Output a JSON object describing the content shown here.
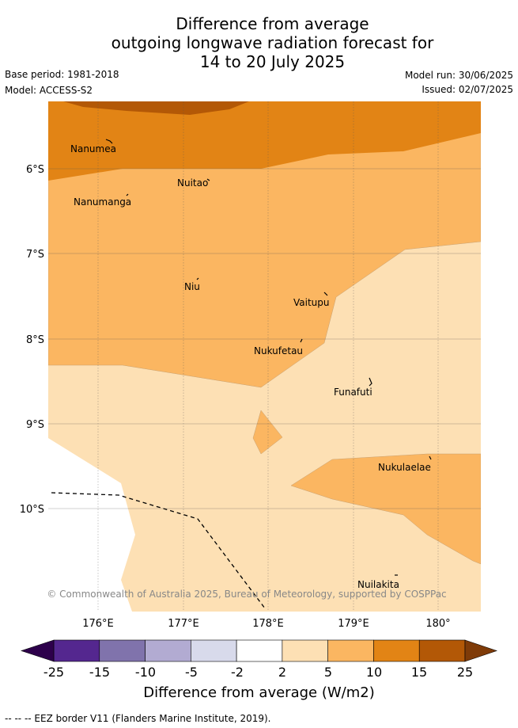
{
  "title": {
    "line1": "Difference from average",
    "line2": "outgoing longwave radiation forecast for",
    "line3": "14 to 20 July 2025"
  },
  "meta": {
    "base_period": "Base period: 1981-2018",
    "model": "Model: ACCESS-S2",
    "model_run": "Model run: 30/06/2025",
    "issued": "Issued: 02/07/2025"
  },
  "map": {
    "lat_labels": [
      "6°S",
      "7°S",
      "8°S",
      "9°S",
      "10°S"
    ],
    "lon_labels": [
      "176°E",
      "177°E",
      "178°E",
      "179°E",
      "180°"
    ],
    "places": [
      "Nanumea",
      "Nuitao",
      "Nanumanga",
      "Niu",
      "Vaitupu",
      "Nukufetau",
      "Funafuti",
      "Nukulaelae",
      "Nuilakita"
    ],
    "copyright": "© Commonwealth of Australia 2025, Bureau of Meteorology, supported by COSPPac",
    "colors": {
      "c2_5": "#fde0b4",
      "c5_10": "#fbb661",
      "c10_15": "#e28415",
      "c15_25": "#b35806"
    }
  },
  "colorbar": {
    "ticks": [
      "-25",
      "-15",
      "-10",
      "-5",
      "-2",
      "2",
      "5",
      "10",
      "15",
      "25"
    ],
    "colors": [
      "#54278f",
      "#8073ac",
      "#b2abd2",
      "#d8daeb",
      "#ffffff",
      "#fde0b4",
      "#fbb661",
      "#e28415",
      "#b35806"
    ],
    "under_color": "#2d004b",
    "over_color": "#7f3b08",
    "label": "Difference from average (W/m2)"
  },
  "footer": {
    "legend": "--  --  -- EEZ border V11 (Flanders Marine Institute, 2019)."
  }
}
